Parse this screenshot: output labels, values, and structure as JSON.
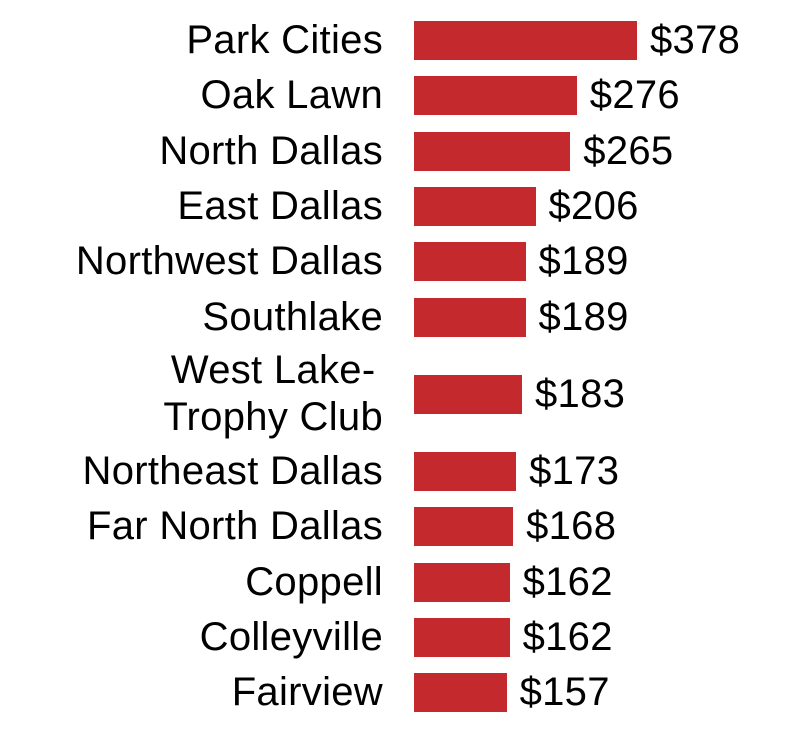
{
  "chart_data": {
    "type": "bar",
    "orientation": "horizontal",
    "title": "",
    "xlabel": "",
    "ylabel": "",
    "xlim": [
      0,
      378
    ],
    "grid": false,
    "legend": false,
    "axes_hidden": true,
    "value_prefix": "$",
    "bar_color": "#c4292e",
    "text_color": "#000000",
    "background_color": "#ffffff",
    "categories": [
      "Park Cities",
      "Oak Lawn",
      "North Dallas",
      "East Dallas",
      "Northwest Dallas",
      "Southlake",
      "West Lake-Trophy Club",
      "Northeast Dallas",
      "Far North Dallas",
      "Coppell",
      "Colleyville",
      "Fairview"
    ],
    "values": [
      378,
      276,
      265,
      206,
      189,
      189,
      183,
      173,
      168,
      162,
      162,
      157
    ],
    "value_labels": [
      "$378",
      "$276",
      "$265",
      "$206",
      "$189",
      "$189",
      "$183",
      "$173",
      "$168",
      "$162",
      "$162",
      "$157"
    ],
    "label_lines": [
      [
        "Park Cities"
      ],
      [
        "Oak Lawn"
      ],
      [
        "North Dallas"
      ],
      [
        "East Dallas"
      ],
      [
        "Northwest Dallas"
      ],
      [
        "Southlake"
      ],
      [
        "West Lake-",
        "Trophy Club"
      ],
      [
        "Northeast Dallas"
      ],
      [
        "Far North Dallas"
      ],
      [
        "Coppell"
      ],
      [
        "Colleyville"
      ],
      [
        "Fairview"
      ]
    ]
  }
}
